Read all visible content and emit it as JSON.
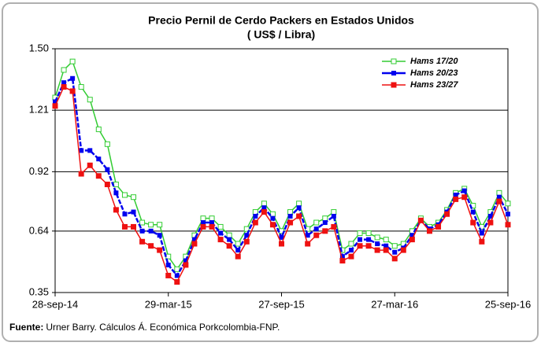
{
  "chart_data": {
    "type": "line",
    "title": "Precio Pernil de Cerdo Packers en Estados Unidos",
    "subtitle": "( US$ / Libra)",
    "source_label": "Fuente:",
    "source_text": "Urner Barry. Cálculos Á. Económica Porkcolombia-FNP.",
    "x": [
      "2014-09-28",
      "2014-10-12",
      "2014-10-26",
      "2014-11-09",
      "2014-11-23",
      "2014-12-07",
      "2014-12-21",
      "2015-01-04",
      "2015-01-18",
      "2015-02-01",
      "2015-02-15",
      "2015-03-01",
      "2015-03-15",
      "2015-03-29",
      "2015-04-12",
      "2015-04-26",
      "2015-05-10",
      "2015-05-24",
      "2015-06-07",
      "2015-06-21",
      "2015-07-05",
      "2015-07-19",
      "2015-08-02",
      "2015-08-16",
      "2015-08-30",
      "2015-09-13",
      "2015-09-27",
      "2015-10-11",
      "2015-10-25",
      "2015-11-08",
      "2015-11-22",
      "2015-12-06",
      "2015-12-20",
      "2016-01-03",
      "2016-01-17",
      "2016-01-31",
      "2016-02-14",
      "2016-02-28",
      "2016-03-13",
      "2016-03-27",
      "2016-04-10",
      "2016-04-24",
      "2016-05-08",
      "2016-05-22",
      "2016-06-05",
      "2016-06-19",
      "2016-07-03",
      "2016-07-17",
      "2016-07-31",
      "2016-08-14",
      "2016-08-28",
      "2016-09-11",
      "2016-09-25"
    ],
    "xlim": [
      "2014-09-28",
      "2016-09-25"
    ],
    "xticks": [
      {
        "value": "2014-09-28",
        "label": "28-sep-14"
      },
      {
        "value": "2015-03-29",
        "label": "29-mar-15"
      },
      {
        "value": "2015-09-27",
        "label": "27-sep-15"
      },
      {
        "value": "2016-03-27",
        "label": "27-mar-16"
      },
      {
        "value": "2016-09-25",
        "label": "25-sep-16"
      }
    ],
    "ylim": [
      0.35,
      1.5
    ],
    "yticks": [
      0.35,
      0.64,
      0.92,
      1.21,
      {
        "value": 1.5,
        "label": "1.50"
      }
    ],
    "grid": true,
    "legend": "top-right",
    "series": [
      {
        "name": "Hams 17/20",
        "color": "#33cc33",
        "marker": "hollow-square",
        "values": [
          1.27,
          1.4,
          1.44,
          1.32,
          1.26,
          1.12,
          1.05,
          0.86,
          0.81,
          0.8,
          0.68,
          0.67,
          0.67,
          0.52,
          0.46,
          0.52,
          0.62,
          0.7,
          0.7,
          0.66,
          0.62,
          0.58,
          0.65,
          0.73,
          0.77,
          0.72,
          0.64,
          0.73,
          0.77,
          0.65,
          0.68,
          0.7,
          0.73,
          0.55,
          0.58,
          0.63,
          0.63,
          0.61,
          0.6,
          0.57,
          0.58,
          0.64,
          0.7,
          0.66,
          0.68,
          0.74,
          0.82,
          0.84,
          0.76,
          0.66,
          0.73,
          0.82,
          0.77
        ]
      },
      {
        "name": "Hams 20/23",
        "color": "#0000ee",
        "marker": "small-square",
        "values": [
          1.25,
          1.34,
          1.36,
          1.02,
          1.02,
          0.98,
          0.93,
          0.82,
          0.72,
          0.73,
          0.64,
          0.64,
          0.62,
          0.48,
          0.43,
          0.5,
          0.6,
          0.68,
          0.68,
          0.63,
          0.6,
          0.55,
          0.62,
          0.71,
          0.75,
          0.7,
          0.61,
          0.71,
          0.75,
          0.62,
          0.65,
          0.68,
          0.71,
          0.52,
          0.55,
          0.6,
          0.6,
          0.58,
          0.57,
          0.54,
          0.56,
          0.62,
          0.69,
          0.65,
          0.67,
          0.73,
          0.81,
          0.83,
          0.73,
          0.63,
          0.71,
          0.8,
          0.72
        ]
      },
      {
        "name": "Hams 23/27",
        "color": "#ee1111",
        "marker": "square",
        "values": [
          1.23,
          1.32,
          1.3,
          0.91,
          0.95,
          0.9,
          0.86,
          0.74,
          0.66,
          0.66,
          0.59,
          0.57,
          0.55,
          0.43,
          0.4,
          0.48,
          0.58,
          0.66,
          0.66,
          0.6,
          0.57,
          0.52,
          0.59,
          0.68,
          0.73,
          0.67,
          0.58,
          0.68,
          0.71,
          0.58,
          0.62,
          0.64,
          0.66,
          0.5,
          0.52,
          0.57,
          0.57,
          0.55,
          0.55,
          0.51,
          0.55,
          0.6,
          0.69,
          0.64,
          0.66,
          0.72,
          0.79,
          0.8,
          0.68,
          0.59,
          0.68,
          0.78,
          0.67
        ]
      }
    ]
  }
}
